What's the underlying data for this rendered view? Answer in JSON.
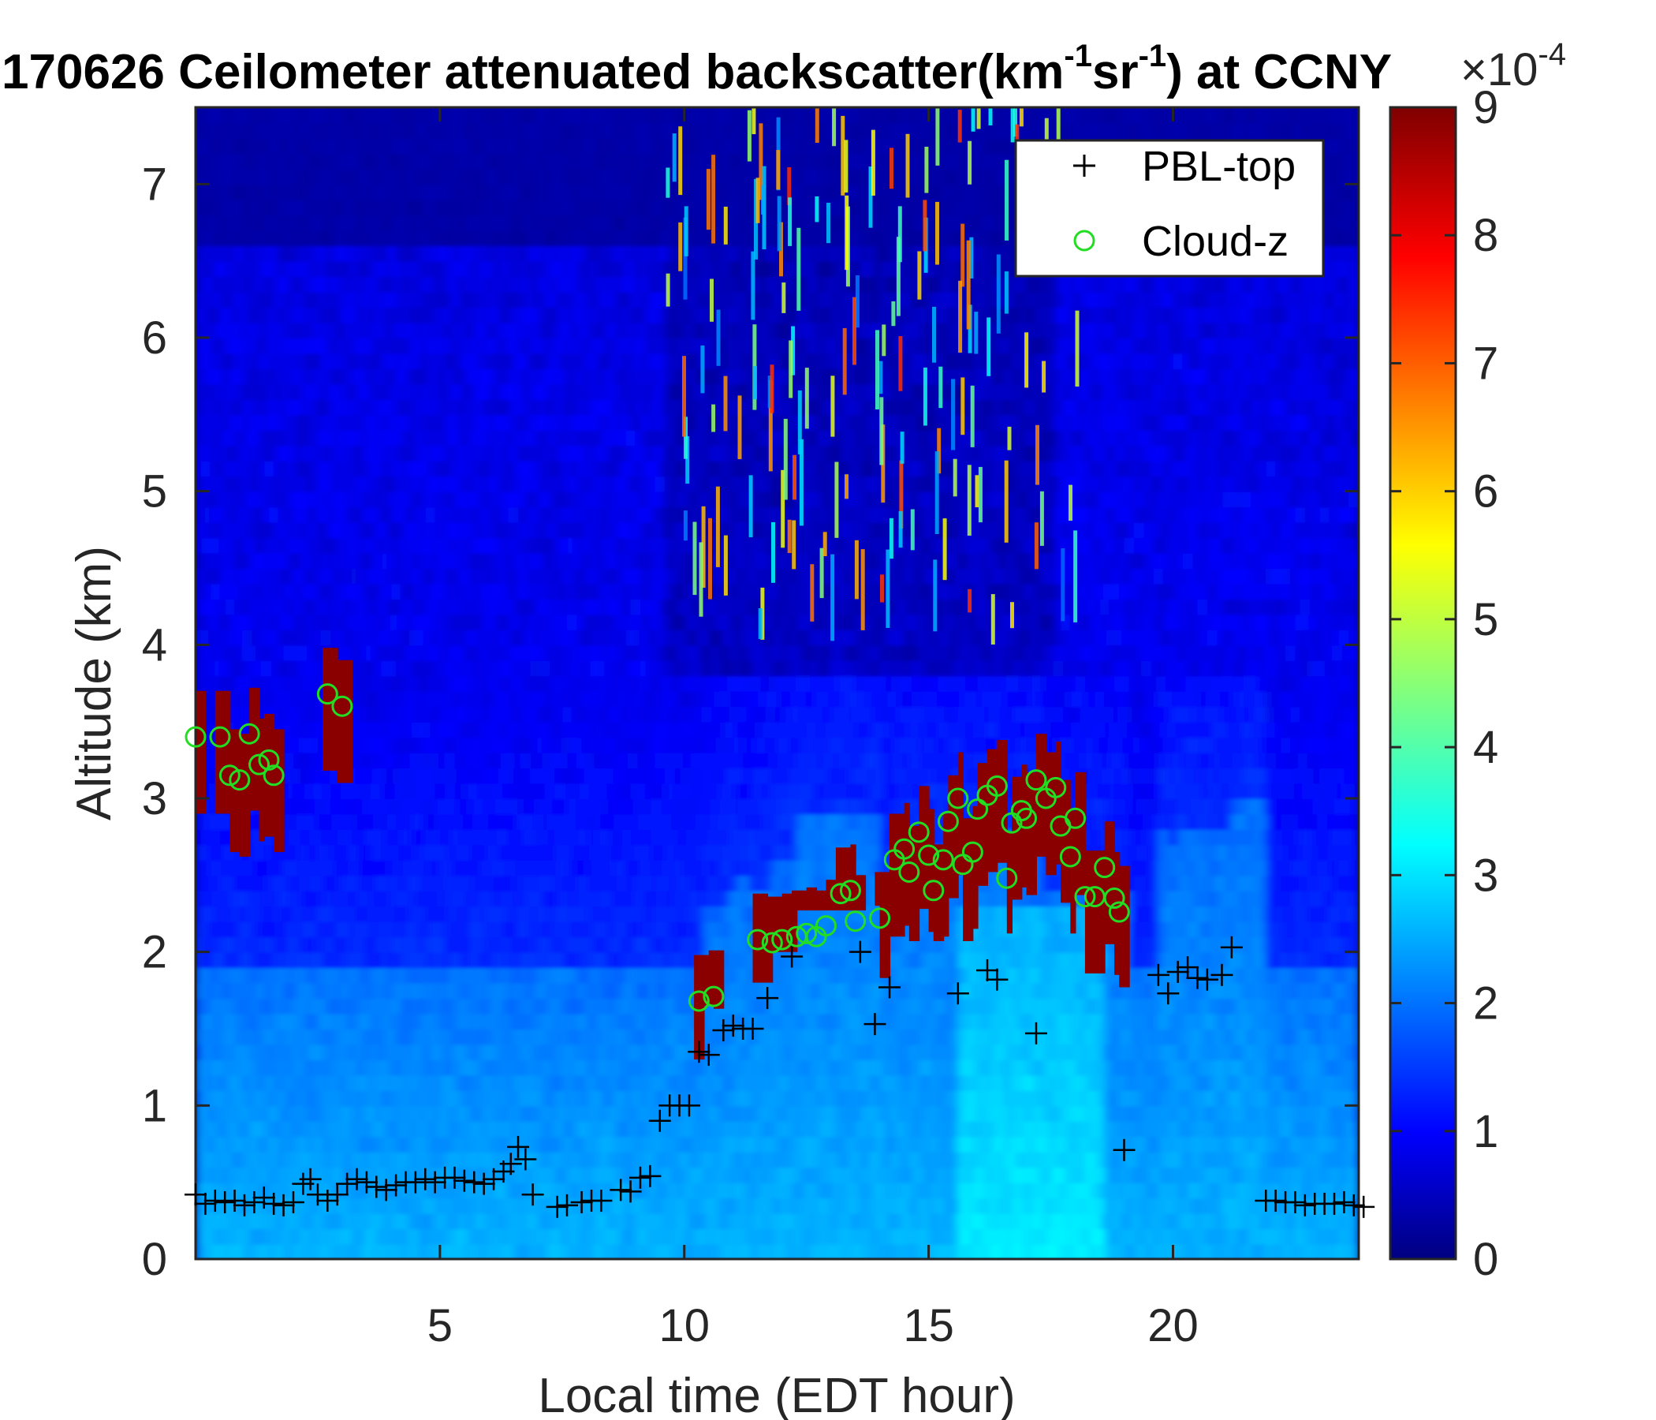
{
  "chart_data": {
    "type": "heatmap",
    "title": {
      "main": "170626 Ceilometer attenuated backscatter(km",
      "sup1": "-1",
      "mid": "sr",
      "sup2": "-1",
      "end": ") at CCNY"
    },
    "xlabel": "Local time (EDT hour)",
    "ylabel": "Altitude (km)",
    "xlim": [
      0,
      23.8
    ],
    "ylim": [
      0,
      7.5
    ],
    "xticks": [
      5,
      10,
      15,
      20
    ],
    "xtick_labels": [
      "5",
      "10",
      "15",
      "20"
    ],
    "yticks": [
      0,
      1,
      2,
      3,
      4,
      5,
      6,
      7
    ],
    "ytick_labels": [
      "0",
      "1",
      "2",
      "3",
      "4",
      "5",
      "6",
      "7"
    ],
    "colorbar": {
      "range": [
        0,
        9
      ],
      "ticks": [
        0,
        1,
        2,
        3,
        4,
        5,
        6,
        7,
        8,
        9
      ],
      "tick_labels": [
        "0",
        "1",
        "2",
        "3",
        "4",
        "5",
        "6",
        "7",
        "8",
        "9"
      ],
      "exponent_base": "×10",
      "exponent_power": "-4",
      "colormap": "jet"
    },
    "legend": {
      "placement": "top-right",
      "entries": [
        {
          "label": "PBL-top",
          "marker": "+",
          "color": "#000000"
        },
        {
          "label": "Cloud-z",
          "marker": "o",
          "color": "#22dd22"
        }
      ]
    },
    "series": [
      {
        "name": "PBL-top",
        "points": [
          [
            0.0,
            0.42
          ],
          [
            0.2,
            0.36
          ],
          [
            0.4,
            0.38
          ],
          [
            0.6,
            0.37
          ],
          [
            0.8,
            0.38
          ],
          [
            1.0,
            0.35
          ],
          [
            1.2,
            0.37
          ],
          [
            1.4,
            0.4
          ],
          [
            1.6,
            0.36
          ],
          [
            1.8,
            0.35
          ],
          [
            2.0,
            0.37
          ],
          [
            2.2,
            0.49
          ],
          [
            2.35,
            0.52
          ],
          [
            2.5,
            0.42
          ],
          [
            2.7,
            0.38
          ],
          [
            2.9,
            0.42
          ],
          [
            3.1,
            0.49
          ],
          [
            3.3,
            0.52
          ],
          [
            3.5,
            0.5
          ],
          [
            3.7,
            0.47
          ],
          [
            3.9,
            0.45
          ],
          [
            4.1,
            0.48
          ],
          [
            4.3,
            0.5
          ],
          [
            4.5,
            0.5
          ],
          [
            4.7,
            0.52
          ],
          [
            4.9,
            0.5
          ],
          [
            5.1,
            0.53
          ],
          [
            5.3,
            0.53
          ],
          [
            5.5,
            0.51
          ],
          [
            5.7,
            0.5
          ],
          [
            5.9,
            0.49
          ],
          [
            6.1,
            0.52
          ],
          [
            6.3,
            0.57
          ],
          [
            6.45,
            0.62
          ],
          [
            6.6,
            0.73
          ],
          [
            6.75,
            0.65
          ],
          [
            6.9,
            0.42
          ],
          [
            7.4,
            0.34
          ],
          [
            7.6,
            0.35
          ],
          [
            7.9,
            0.37
          ],
          [
            8.1,
            0.38
          ],
          [
            8.3,
            0.38
          ],
          [
            8.7,
            0.45
          ],
          [
            8.9,
            0.44
          ],
          [
            9.1,
            0.53
          ],
          [
            9.3,
            0.54
          ],
          [
            9.5,
            0.9
          ],
          [
            9.7,
            1.0
          ],
          [
            9.9,
            1.0
          ],
          [
            10.1,
            1.0
          ],
          [
            10.3,
            1.35
          ],
          [
            10.5,
            1.33
          ],
          [
            10.8,
            1.49
          ],
          [
            11.0,
            1.52
          ],
          [
            11.2,
            1.5
          ],
          [
            11.4,
            1.5
          ],
          [
            11.7,
            1.7
          ],
          [
            12.2,
            1.97
          ],
          [
            13.6,
            2.0
          ],
          [
            13.9,
            1.53
          ],
          [
            14.2,
            1.77
          ],
          [
            15.6,
            1.73
          ],
          [
            16.2,
            1.88
          ],
          [
            16.4,
            1.82
          ],
          [
            17.2,
            1.47
          ],
          [
            19.0,
            0.71
          ],
          [
            19.7,
            1.85
          ],
          [
            19.9,
            1.73
          ],
          [
            20.1,
            1.87
          ],
          [
            20.3,
            1.9
          ],
          [
            20.5,
            1.83
          ],
          [
            20.7,
            1.82
          ],
          [
            21.0,
            1.85
          ],
          [
            21.2,
            2.03
          ],
          [
            21.9,
            0.38
          ],
          [
            22.1,
            0.38
          ],
          [
            22.3,
            0.37
          ],
          [
            22.5,
            0.37
          ],
          [
            22.7,
            0.35
          ],
          [
            22.9,
            0.36
          ],
          [
            23.1,
            0.36
          ],
          [
            23.3,
            0.36
          ],
          [
            23.5,
            0.37
          ],
          [
            23.7,
            0.35
          ],
          [
            23.9,
            0.34
          ]
        ]
      },
      {
        "name": "Cloud-z",
        "points": [
          [
            0.0,
            3.4
          ],
          [
            0.5,
            3.4
          ],
          [
            0.7,
            3.15
          ],
          [
            0.9,
            3.12
          ],
          [
            1.1,
            3.42
          ],
          [
            1.3,
            3.22
          ],
          [
            1.5,
            3.25
          ],
          [
            1.6,
            3.15
          ],
          [
            2.7,
            3.68
          ],
          [
            3.0,
            3.6
          ],
          [
            10.3,
            1.68
          ],
          [
            10.6,
            1.71
          ],
          [
            11.5,
            2.08
          ],
          [
            11.8,
            2.06
          ],
          [
            12.0,
            2.08
          ],
          [
            12.3,
            2.1
          ],
          [
            12.5,
            2.12
          ],
          [
            12.7,
            2.1
          ],
          [
            12.9,
            2.17
          ],
          [
            13.2,
            2.38
          ],
          [
            13.4,
            2.4
          ],
          [
            13.5,
            2.2
          ],
          [
            14.0,
            2.22
          ],
          [
            14.3,
            2.6
          ],
          [
            14.5,
            2.67
          ],
          [
            14.6,
            2.52
          ],
          [
            14.8,
            2.78
          ],
          [
            15.0,
            2.63
          ],
          [
            15.1,
            2.4
          ],
          [
            15.3,
            2.6
          ],
          [
            15.4,
            2.85
          ],
          [
            15.6,
            3.0
          ],
          [
            15.7,
            2.57
          ],
          [
            15.9,
            2.65
          ],
          [
            16.0,
            2.93
          ],
          [
            16.2,
            3.02
          ],
          [
            16.4,
            3.08
          ],
          [
            16.6,
            2.48
          ],
          [
            16.7,
            2.84
          ],
          [
            16.9,
            2.92
          ],
          [
            17.0,
            2.87
          ],
          [
            17.2,
            3.12
          ],
          [
            17.4,
            3.0
          ],
          [
            17.6,
            3.07
          ],
          [
            17.7,
            2.82
          ],
          [
            17.9,
            2.62
          ],
          [
            18.0,
            2.87
          ],
          [
            18.2,
            2.36
          ],
          [
            18.4,
            2.36
          ],
          [
            18.6,
            2.55
          ],
          [
            18.8,
            2.35
          ],
          [
            18.9,
            2.26
          ]
        ]
      }
    ]
  }
}
